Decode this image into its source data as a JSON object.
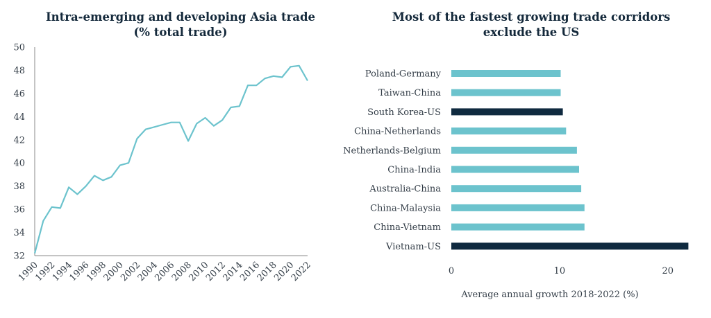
{
  "colors": {
    "line": "#6cc3cd",
    "bar": "#6cc3cd",
    "highlight": "#0f2a3f",
    "axis": "#888888",
    "text": "#333d47"
  },
  "chart_data": [
    {
      "type": "line",
      "title_lines": [
        "Intra-emerging and developing Asia trade",
        "(% total trade)"
      ],
      "xlabel": "",
      "ylabel": "",
      "ylim": [
        32,
        50
      ],
      "yticks": [
        32,
        34,
        36,
        38,
        40,
        42,
        44,
        46,
        48,
        50
      ],
      "xlim": [
        1990,
        2022
      ],
      "xticks": [
        1990,
        1992,
        1994,
        1996,
        1998,
        2000,
        2002,
        2004,
        2006,
        2008,
        2010,
        2012,
        2014,
        2016,
        2018,
        2020,
        2022
      ],
      "series": [
        {
          "name": "Intra-emerging and developing Asia trade",
          "x": [
            1990,
            1991,
            1992,
            1993,
            1994,
            1995,
            1996,
            1997,
            1998,
            1999,
            2000,
            2001,
            2002,
            2003,
            2004,
            2005,
            2006,
            2007,
            2008,
            2009,
            2010,
            2011,
            2012,
            2013,
            2014,
            2015,
            2016,
            2017,
            2018,
            2019,
            2020,
            2021,
            2022
          ],
          "values": [
            32.2,
            35.0,
            36.2,
            36.1,
            37.9,
            37.3,
            38.0,
            38.9,
            38.5,
            38.8,
            39.8,
            40.0,
            42.1,
            42.9,
            43.1,
            43.3,
            43.5,
            43.5,
            41.9,
            43.4,
            43.9,
            43.2,
            43.7,
            44.8,
            44.9,
            46.7,
            46.7,
            47.3,
            47.5,
            47.4,
            48.3,
            48.4,
            47.1
          ]
        }
      ]
    },
    {
      "type": "bar",
      "orientation": "horizontal",
      "title_lines": [
        "Most of the fastest growing trade corridors",
        "exclude the US"
      ],
      "xlabel": "Average annual growth 2018-2022 (%)",
      "ylabel": "",
      "xlim": [
        0,
        22
      ],
      "xticks": [
        0,
        10,
        20
      ],
      "categories": [
        "Poland-Germany",
        "Taiwan-China",
        "South Korea-US",
        "China-Netherlands",
        "Netherlands-Belgium",
        "China-India",
        "Australia-China",
        "China-Malaysia",
        "China-Vietnam",
        "Vietnam-US"
      ],
      "values": [
        10.1,
        10.1,
        10.3,
        10.6,
        11.6,
        11.8,
        12.0,
        12.3,
        12.3,
        21.9
      ],
      "highlighted": [
        "South Korea-US",
        "Vietnam-US"
      ]
    }
  ]
}
